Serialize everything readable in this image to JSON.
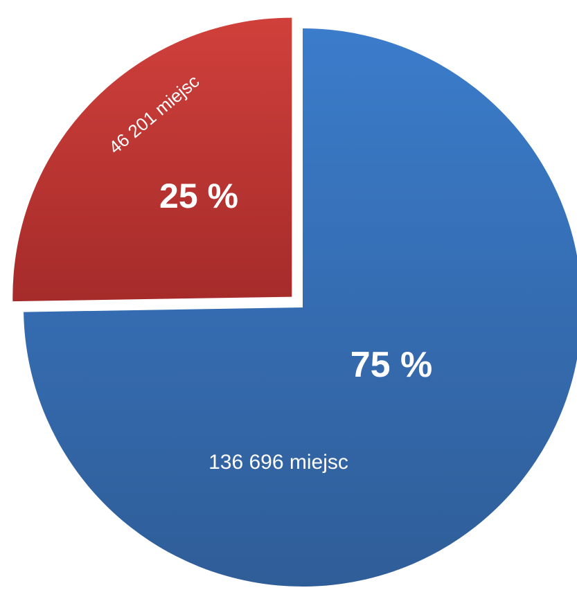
{
  "chart_data": {
    "type": "pie",
    "title": "",
    "legend": "none",
    "slices": [
      {
        "value": 136696,
        "percent_label": "75 %",
        "count_label": "136 696 miejsc",
        "color_top": "#3b7ccb",
        "color_bottom": "#2f5d98",
        "exploded": false
      },
      {
        "value": 46201,
        "percent_label": "25 %",
        "count_label": "46 201 miejsc",
        "color_top": "#d0403b",
        "color_bottom": "#a52b2a",
        "exploded": true
      }
    ]
  }
}
